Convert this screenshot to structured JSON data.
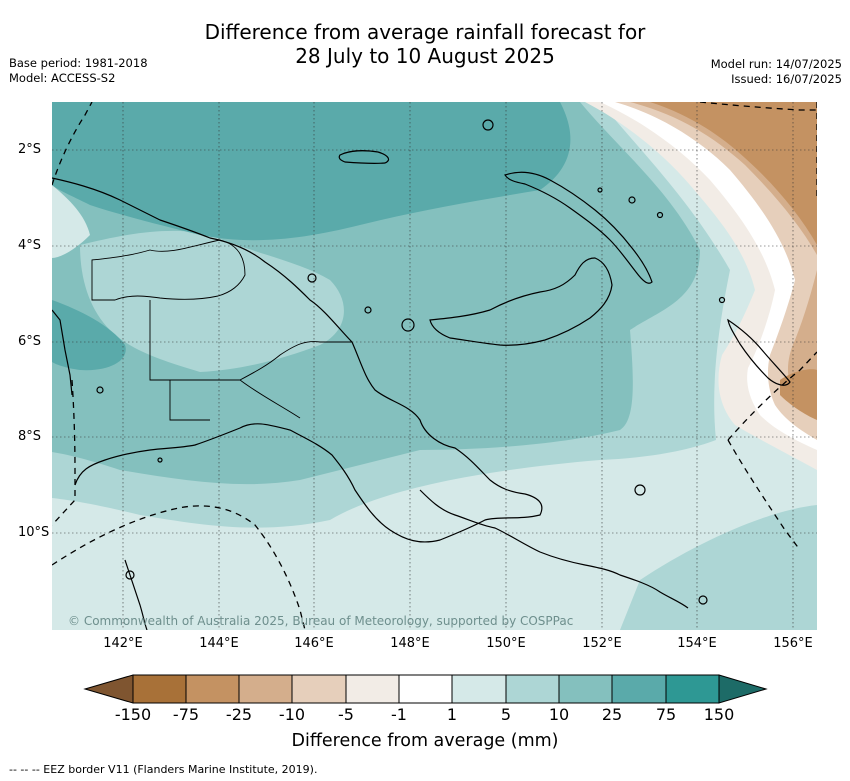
{
  "title": {
    "line1": "Difference from average rainfall forecast for",
    "line2": "28 July to 10 August 2025"
  },
  "meta": {
    "base_period": "Base period: 1981-2018",
    "model": "Model: ACCESS-S2",
    "model_run": "Model run: 14/07/2025",
    "issued": "Issued: 16/07/2025"
  },
  "map": {
    "lon_ticks": [
      "142°E",
      "144°E",
      "146°E",
      "148°E",
      "150°E",
      "152°E",
      "154°E",
      "156°E"
    ],
    "lat_ticks": [
      "2°S",
      "4°S",
      "6°S",
      "8°S",
      "10°S"
    ],
    "copyright": "© Commonwealth of Australia 2025, Bureau of Meteorology, supported by COSPPac"
  },
  "colorbar": {
    "labels": [
      "-150",
      "-75",
      "-25",
      "-10",
      "-5",
      "-1",
      "1",
      "5",
      "10",
      "25",
      "75",
      "150"
    ],
    "colors": [
      "#7f5530",
      "#a87138",
      "#c49262",
      "#d4ae8c",
      "#e6cfbb",
      "#f2ece6",
      "#ffffff",
      "#d5e9e8",
      "#add6d5",
      "#84c0be",
      "#5aaaaa",
      "#2e9894",
      "#1d6b67"
    ],
    "title": "Difference from average (mm)"
  },
  "footnote": "--  --  -- EEZ border V11 (Flanders Marine Institute, 2019)."
}
